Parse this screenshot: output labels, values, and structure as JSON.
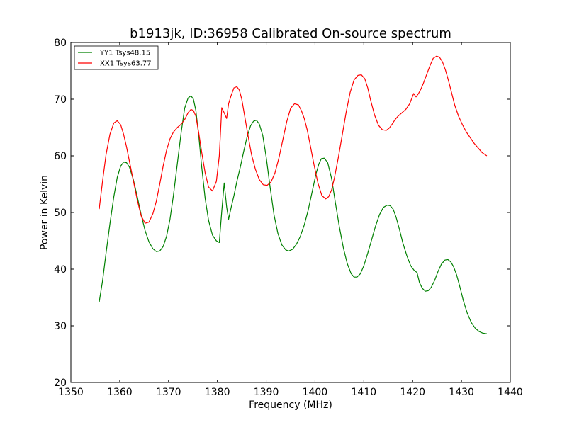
{
  "chart_data": {
    "type": "line",
    "title": "b1913jk, ID:36958 Calibrated On-source spectrum",
    "xlabel": "Frequency (MHz)",
    "ylabel": "Power in Kelvin",
    "xlim": [
      1350,
      1440
    ],
    "ylim": [
      20,
      80
    ],
    "xticks": [
      1350,
      1360,
      1370,
      1380,
      1390,
      1400,
      1410,
      1420,
      1430,
      1440
    ],
    "yticks": [
      20,
      30,
      40,
      50,
      60,
      70,
      80
    ],
    "grid": false,
    "legend_position": "top-left",
    "series": [
      {
        "name": "YY1 Tsys48.15",
        "color": "#008000",
        "x": [
          1355.8,
          1356.5,
          1357.2,
          1358.0,
          1358.8,
          1359.5,
          1360.2,
          1360.8,
          1361.4,
          1362.0,
          1362.8,
          1363.6,
          1364.4,
          1365.2,
          1366.0,
          1366.8,
          1367.5,
          1368.2,
          1368.9,
          1369.6,
          1370.3,
          1371.0,
          1371.8,
          1372.6,
          1373.3,
          1374.0,
          1374.6,
          1375.1,
          1375.6,
          1376.2,
          1376.8,
          1377.5,
          1378.2,
          1379.0,
          1379.8,
          1380.4,
          1380.9,
          1381.4,
          1381.9,
          1382.3,
          1382.8,
          1383.4,
          1384.0,
          1384.7,
          1385.4,
          1386.1,
          1386.8,
          1387.4,
          1388.0,
          1388.6,
          1389.3,
          1390.0,
          1390.8,
          1391.6,
          1392.4,
          1393.2,
          1394.0,
          1394.6,
          1395.4,
          1396.2,
          1397.0,
          1397.8,
          1398.6,
          1399.4,
          1400.2,
          1400.8,
          1401.3,
          1401.9,
          1402.6,
          1403.4,
          1404.2,
          1405.0,
          1405.8,
          1406.6,
          1407.4,
          1408.0,
          1408.6,
          1409.3,
          1410.0,
          1410.8,
          1411.6,
          1412.4,
          1413.2,
          1414.0,
          1414.8,
          1415.4,
          1416.0,
          1416.6,
          1417.3,
          1418.0,
          1418.8,
          1419.6,
          1420.3,
          1420.9,
          1421.4,
          1422.0,
          1422.6,
          1423.2,
          1423.8,
          1424.5,
          1425.2,
          1425.9,
          1426.6,
          1427.2,
          1427.8,
          1428.4,
          1429.0,
          1429.7,
          1430.4,
          1431.2,
          1432.0,
          1432.8,
          1433.6,
          1434.4,
          1435.2
        ],
        "y": [
          34.2,
          38.0,
          42.8,
          48.0,
          52.8,
          56.2,
          58.2,
          58.9,
          58.8,
          58.0,
          55.8,
          52.8,
          49.6,
          46.8,
          44.8,
          43.6,
          43.1,
          43.2,
          44.0,
          45.8,
          48.8,
          53.0,
          58.6,
          64.2,
          68.4,
          70.2,
          70.6,
          70.0,
          68.0,
          63.5,
          58.0,
          52.5,
          48.6,
          46.0,
          45.0,
          44.7,
          50.2,
          55.2,
          51.0,
          48.8,
          50.8,
          53.0,
          55.5,
          58.0,
          60.8,
          63.4,
          65.3,
          66.1,
          66.3,
          65.6,
          63.6,
          59.8,
          54.5,
          49.6,
          46.3,
          44.3,
          43.4,
          43.2,
          43.5,
          44.4,
          45.8,
          47.8,
          50.4,
          53.6,
          56.8,
          58.6,
          59.5,
          59.6,
          58.8,
          56.0,
          51.6,
          47.4,
          43.8,
          41.0,
          39.2,
          38.6,
          38.6,
          39.2,
          40.6,
          42.8,
          45.2,
          47.6,
          49.6,
          50.9,
          51.3,
          51.2,
          50.6,
          49.2,
          47.0,
          44.6,
          42.4,
          40.6,
          39.8,
          39.4,
          37.6,
          36.6,
          36.1,
          36.2,
          36.8,
          38.0,
          39.6,
          40.9,
          41.6,
          41.7,
          41.3,
          40.4,
          39.0,
          36.8,
          34.4,
          32.2,
          30.6,
          29.6,
          29.0,
          28.7,
          28.6
        ]
      },
      {
        "name": "XX1 Tsys63.77",
        "color": "#ff0000",
        "x": [
          1355.8,
          1356.5,
          1357.2,
          1358.0,
          1358.8,
          1359.5,
          1360.2,
          1360.8,
          1361.4,
          1362.0,
          1362.8,
          1363.6,
          1364.4,
          1365.2,
          1366.0,
          1366.8,
          1367.5,
          1368.2,
          1368.9,
          1369.6,
          1370.3,
          1371.0,
          1371.8,
          1372.6,
          1373.3,
          1374.0,
          1374.6,
          1375.1,
          1375.6,
          1376.2,
          1376.8,
          1377.5,
          1378.2,
          1379.0,
          1379.8,
          1380.4,
          1380.9,
          1381.4,
          1381.9,
          1382.3,
          1382.8,
          1383.4,
          1384.0,
          1384.5,
          1385.0,
          1385.6,
          1386.3,
          1387.0,
          1387.8,
          1388.6,
          1389.4,
          1390.2,
          1391.0,
          1391.8,
          1392.6,
          1393.4,
          1394.2,
          1395.0,
          1395.8,
          1396.6,
          1397.2,
          1397.8,
          1398.4,
          1399.0,
          1399.8,
          1400.6,
          1401.4,
          1402.2,
          1402.8,
          1403.4,
          1404.0,
          1404.8,
          1405.6,
          1406.4,
          1407.2,
          1408.0,
          1408.8,
          1409.5,
          1410.2,
          1410.8,
          1411.4,
          1412.2,
          1413.0,
          1413.8,
          1414.6,
          1415.2,
          1415.8,
          1416.4,
          1417.0,
          1417.8,
          1418.6,
          1419.4,
          1420.2,
          1420.7,
          1421.2,
          1421.7,
          1422.2,
          1422.8,
          1423.5,
          1424.2,
          1424.9,
          1425.5,
          1426.1,
          1426.7,
          1427.3,
          1427.9,
          1428.6,
          1429.4,
          1430.2,
          1431.0,
          1431.8,
          1432.6,
          1433.4,
          1434.2,
          1435.2
        ],
        "y": [
          50.6,
          55.6,
          60.2,
          63.8,
          65.8,
          66.2,
          65.5,
          63.8,
          61.6,
          59.0,
          55.6,
          52.2,
          49.4,
          48.1,
          48.3,
          49.8,
          52.0,
          55.0,
          58.2,
          61.0,
          63.0,
          64.2,
          65.0,
          65.6,
          66.4,
          67.6,
          68.2,
          68.0,
          67.0,
          64.0,
          60.6,
          57.0,
          54.5,
          53.8,
          55.5,
          60.0,
          68.5,
          67.6,
          66.6,
          69.2,
          70.6,
          72.0,
          72.2,
          71.6,
          70.0,
          67.0,
          63.5,
          60.2,
          57.6,
          55.8,
          54.9,
          54.8,
          55.4,
          57.0,
          59.6,
          62.8,
          66.0,
          68.4,
          69.2,
          69.0,
          68.0,
          66.6,
          64.6,
          62.0,
          58.4,
          55.2,
          53.0,
          52.4,
          52.8,
          54.0,
          56.2,
          59.8,
          63.8,
          67.8,
          71.2,
          73.4,
          74.2,
          74.3,
          73.6,
          72.0,
          69.8,
          67.2,
          65.4,
          64.6,
          64.5,
          64.9,
          65.6,
          66.4,
          67.0,
          67.6,
          68.2,
          69.2,
          71.0,
          70.4,
          71.0,
          71.8,
          72.8,
          74.2,
          75.8,
          77.2,
          77.6,
          77.4,
          76.6,
          75.2,
          73.4,
          71.4,
          69.0,
          67.0,
          65.5,
          64.2,
          63.2,
          62.2,
          61.4,
          60.6,
          60.0
        ]
      }
    ]
  }
}
